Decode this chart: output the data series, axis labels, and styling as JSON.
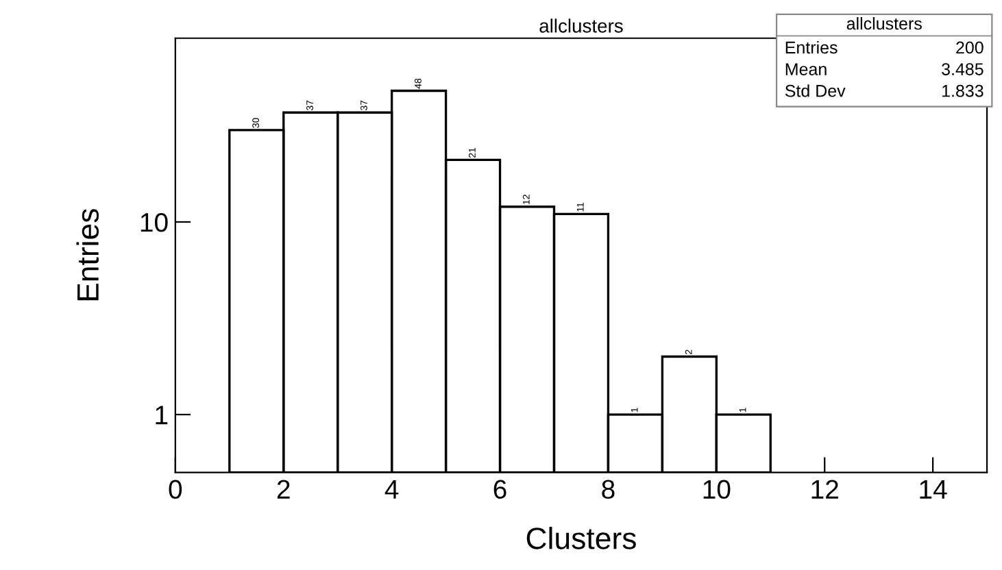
{
  "chart_data": {
    "type": "histogram",
    "title": "allclusters",
    "xlabel": "Clusters",
    "ylabel": "Entries",
    "bins": [
      1,
      2,
      3,
      4,
      5,
      6,
      7,
      8,
      9,
      10,
      11
    ],
    "values": [
      30,
      37,
      37,
      48,
      21,
      12,
      11,
      1,
      2,
      1
    ],
    "color": "#000000",
    "data_labels": true,
    "log": "y",
    "grid": false,
    "xlim": [
      0,
      15
    ],
    "xticks": [
      0,
      2,
      4,
      6,
      8,
      10,
      12,
      14
    ],
    "ylim": [
      0.5,
      90
    ],
    "yticks": [
      1,
      10
    ],
    "annotations": [
      "allclusters",
      "Entries",
      "200",
      "Mean",
      "3.485",
      "Std Dev",
      "1.833"
    ]
  }
}
